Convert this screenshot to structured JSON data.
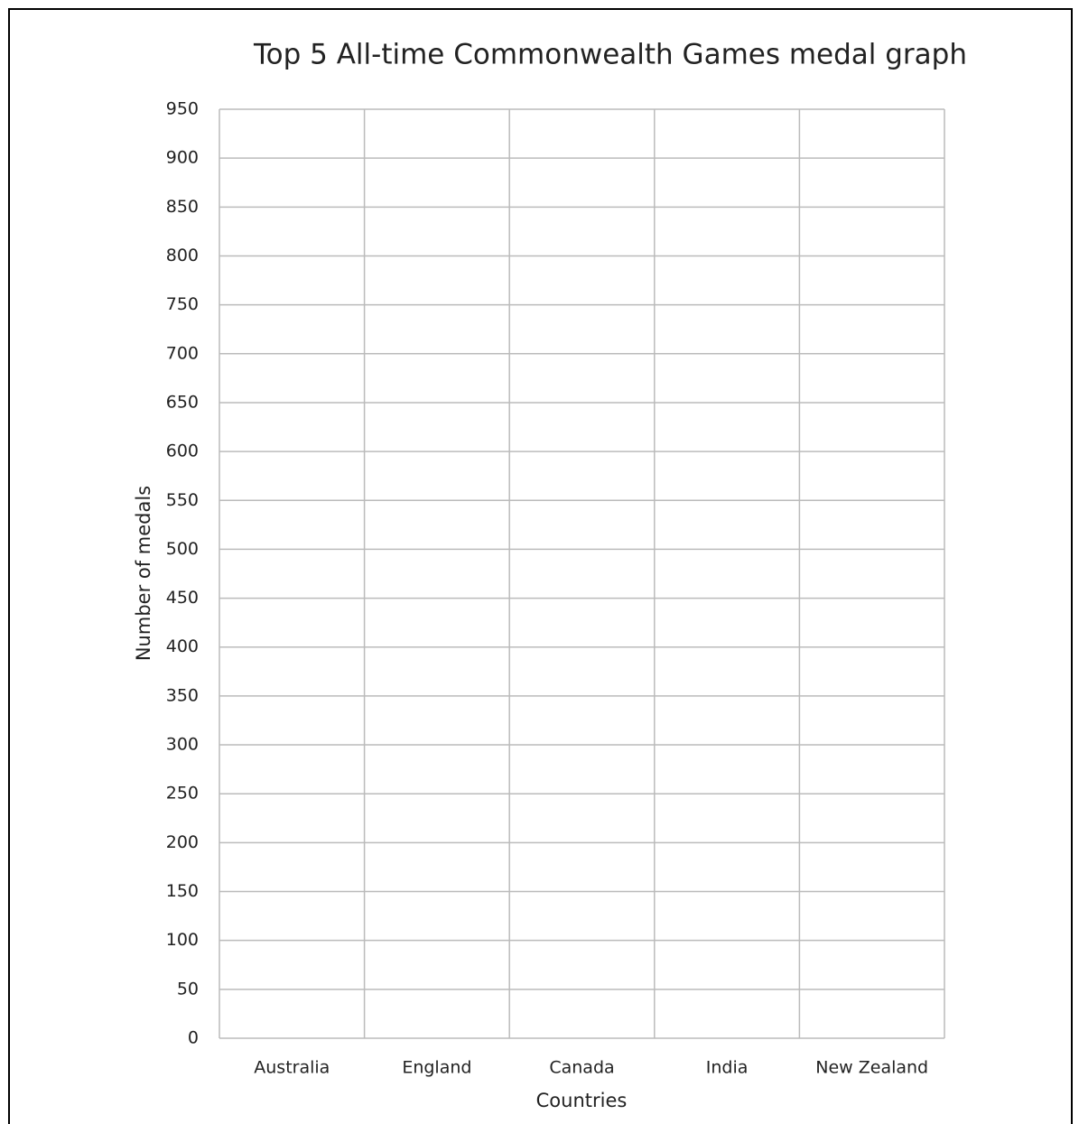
{
  "chart_data": {
    "type": "bar",
    "title": "Top 5 All-time Commonwealth Games medal graph",
    "xlabel": "Countries",
    "ylabel": "Number of medals",
    "categories": [
      "Australia",
      "England",
      "Canada",
      "India",
      "New Zealand"
    ],
    "ylim": [
      0,
      950
    ],
    "yticks": [
      0,
      50,
      100,
      150,
      200,
      250,
      300,
      350,
      400,
      450,
      500,
      550,
      600,
      650,
      700,
      750,
      800,
      850,
      900,
      950
    ],
    "grid": true
  }
}
